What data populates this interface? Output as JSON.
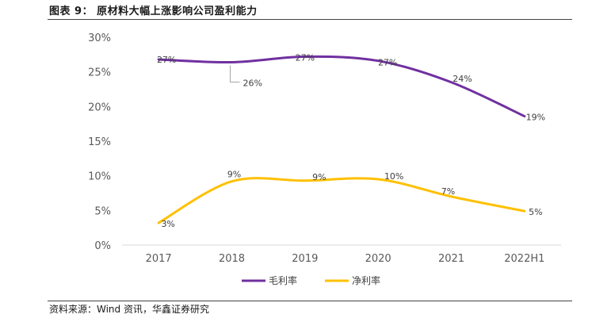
{
  "figure": {
    "title": "图表 9：  原材料大幅上涨影响公司盈利能力",
    "source": "资料来源：Wind 资讯，华鑫证券研究"
  },
  "colors": {
    "gross_margin": "#7030A0",
    "net_margin": "#FFC000"
  },
  "chart_data": {
    "type": "line",
    "title": "",
    "xlabel": "",
    "ylabel": "",
    "categories": [
      "2017",
      "2018",
      "2019",
      "2020",
      "2021",
      "2022H1"
    ],
    "ylim": [
      0,
      30
    ],
    "yticks": [
      0,
      5,
      10,
      15,
      20,
      25,
      30
    ],
    "ytick_labels": [
      "0%",
      "5%",
      "10%",
      "15%",
      "20%",
      "25%",
      "30%"
    ],
    "grid": false,
    "legend_position": "bottom",
    "smooth": true,
    "series": [
      {
        "name": "毛利率",
        "color": "#7030A0",
        "values": [
          26.8,
          26.4,
          27.2,
          26.6,
          23.5,
          18.6
        ],
        "labels": [
          "27%",
          "26%",
          "27%",
          "27%",
          "24%",
          "19%"
        ]
      },
      {
        "name": "净利率",
        "color": "#FFC000",
        "values": [
          3.2,
          9.2,
          9.3,
          9.5,
          7.0,
          4.9
        ],
        "labels": [
          "3%",
          "9%",
          "9%",
          "10%",
          "7%",
          "5%"
        ]
      }
    ]
  }
}
